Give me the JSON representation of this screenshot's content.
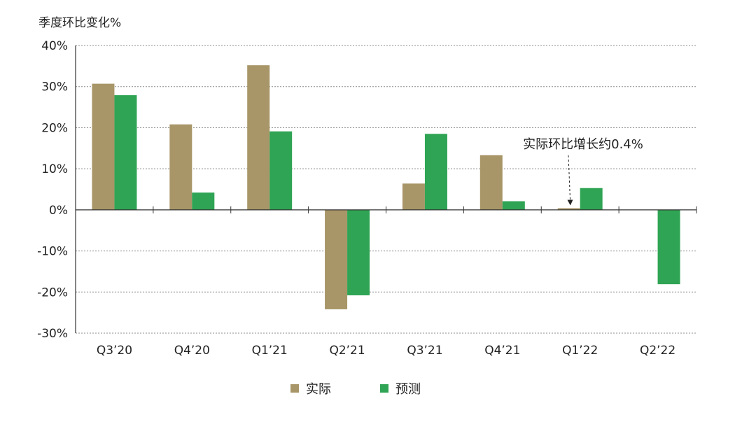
{
  "chart_data": {
    "type": "bar",
    "title": "",
    "ylabel": "季度环比变化%",
    "xlabel": "",
    "categories": [
      "Q3’20",
      "Q4’20",
      "Q1’21",
      "Q2’21",
      "Q3’21",
      "Q4’21",
      "Q1’22",
      "Q2’22"
    ],
    "series": [
      {
        "name": "实际",
        "color": "#a89668",
        "values": [
          30.7,
          20.8,
          35.2,
          -24.2,
          6.4,
          13.3,
          0.4,
          null
        ]
      },
      {
        "name": "预测",
        "color": "#2fa454",
        "values": [
          27.9,
          4.2,
          19.1,
          -20.8,
          18.5,
          2.1,
          5.3,
          -18.1
        ]
      }
    ],
    "ylim": [
      -30,
      40
    ],
    "yticks": [
      40,
      30,
      20,
      10,
      0,
      -10,
      -20,
      -30
    ],
    "ytick_labels": [
      "40%",
      "30%",
      "20%",
      "10%",
      "0%",
      "-10%",
      "-20%",
      "-30%"
    ],
    "grid": true,
    "legend_position": "bottom",
    "annotation": {
      "text": "实际环比增长约0.4%",
      "category": "Q1’22",
      "series": "实际"
    }
  }
}
